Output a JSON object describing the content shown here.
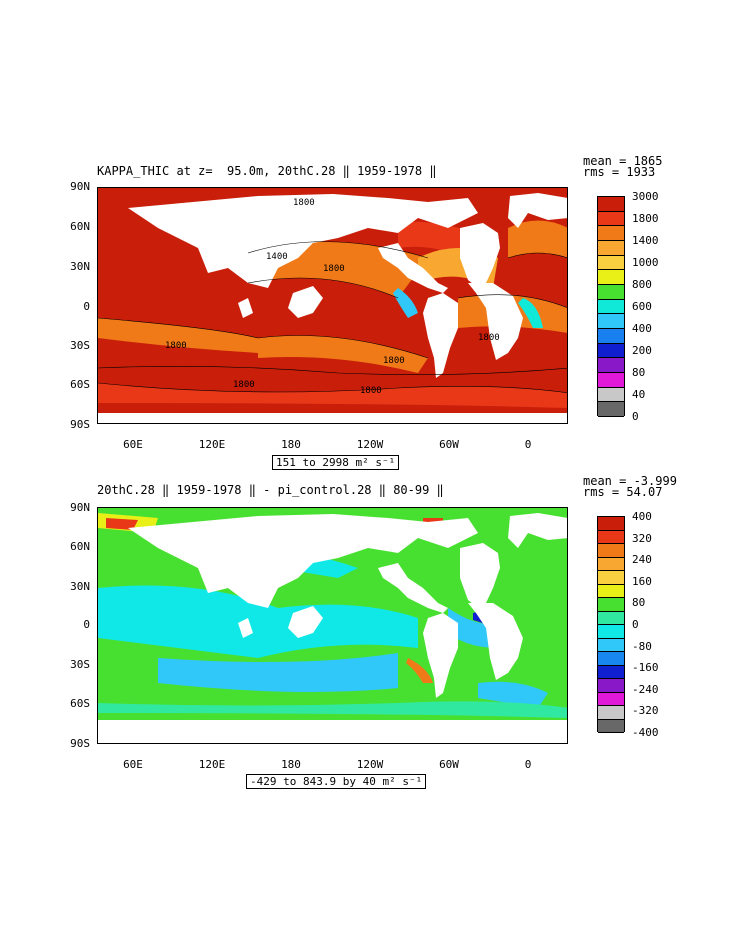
{
  "panels": [
    {
      "title": "KAPPA_THIC at z=  95.0m, 20thC.28 ‖ 1959-1978 ‖",
      "stats": {
        "mean": "mean = 1865",
        "rms": "rms = 1933"
      },
      "lat_labels": [
        "90N",
        "60N",
        "30N",
        "0",
        "30S",
        "60S",
        "90S"
      ],
      "lon_labels": [
        "60E",
        "120E",
        "180",
        "120W",
        "60W",
        "0"
      ],
      "range_label": "151 to 2998 m² s⁻¹",
      "colorbar_labels": [
        "3000",
        "1800",
        "1400",
        "1000",
        "800",
        "600",
        "400",
        "200",
        "80",
        "40",
        "0"
      ],
      "colorbar_colors": [
        "#c81e0a",
        "#e83818",
        "#f07a18",
        "#f8a830",
        "#f8d040",
        "#e8f018",
        "#48e030",
        "#10e8d8",
        "#30c8f8",
        "#1880f0",
        "#1020d0",
        "#8818c8",
        "#e018d8",
        "#c8c8c8",
        "#686868"
      ],
      "contour_labels": [
        "1800",
        "1400",
        "1800",
        "1800",
        "1800",
        "1800",
        "1800",
        "1800"
      ]
    },
    {
      "title": "20thC.28 ‖ 1959-1978 ‖ - pi_control.28 ‖ 80-99 ‖",
      "stats": {
        "mean": "mean = -3.999",
        "rms": "rms = 54.07"
      },
      "lat_labels": [
        "90N",
        "60N",
        "30N",
        "0",
        "30S",
        "60S",
        "90S"
      ],
      "lon_labels": [
        "60E",
        "120E",
        "180",
        "120W",
        "60W",
        "0"
      ],
      "range_label": "-429 to 843.9 by 40 m² s⁻¹",
      "colorbar_labels": [
        "400",
        "320",
        "240",
        "160",
        "80",
        "0",
        "-80",
        "-160",
        "-240",
        "-320",
        "-400"
      ],
      "colorbar_colors": [
        "#c81e0a",
        "#e83818",
        "#f07a18",
        "#f8a830",
        "#f8d040",
        "#e8f018",
        "#48e030",
        "#30e8a0",
        "#10e8e8",
        "#30c8f8",
        "#1888f0",
        "#1020d0",
        "#8818c8",
        "#e018d8",
        "#c8c8c8",
        "#686868"
      ]
    }
  ]
}
